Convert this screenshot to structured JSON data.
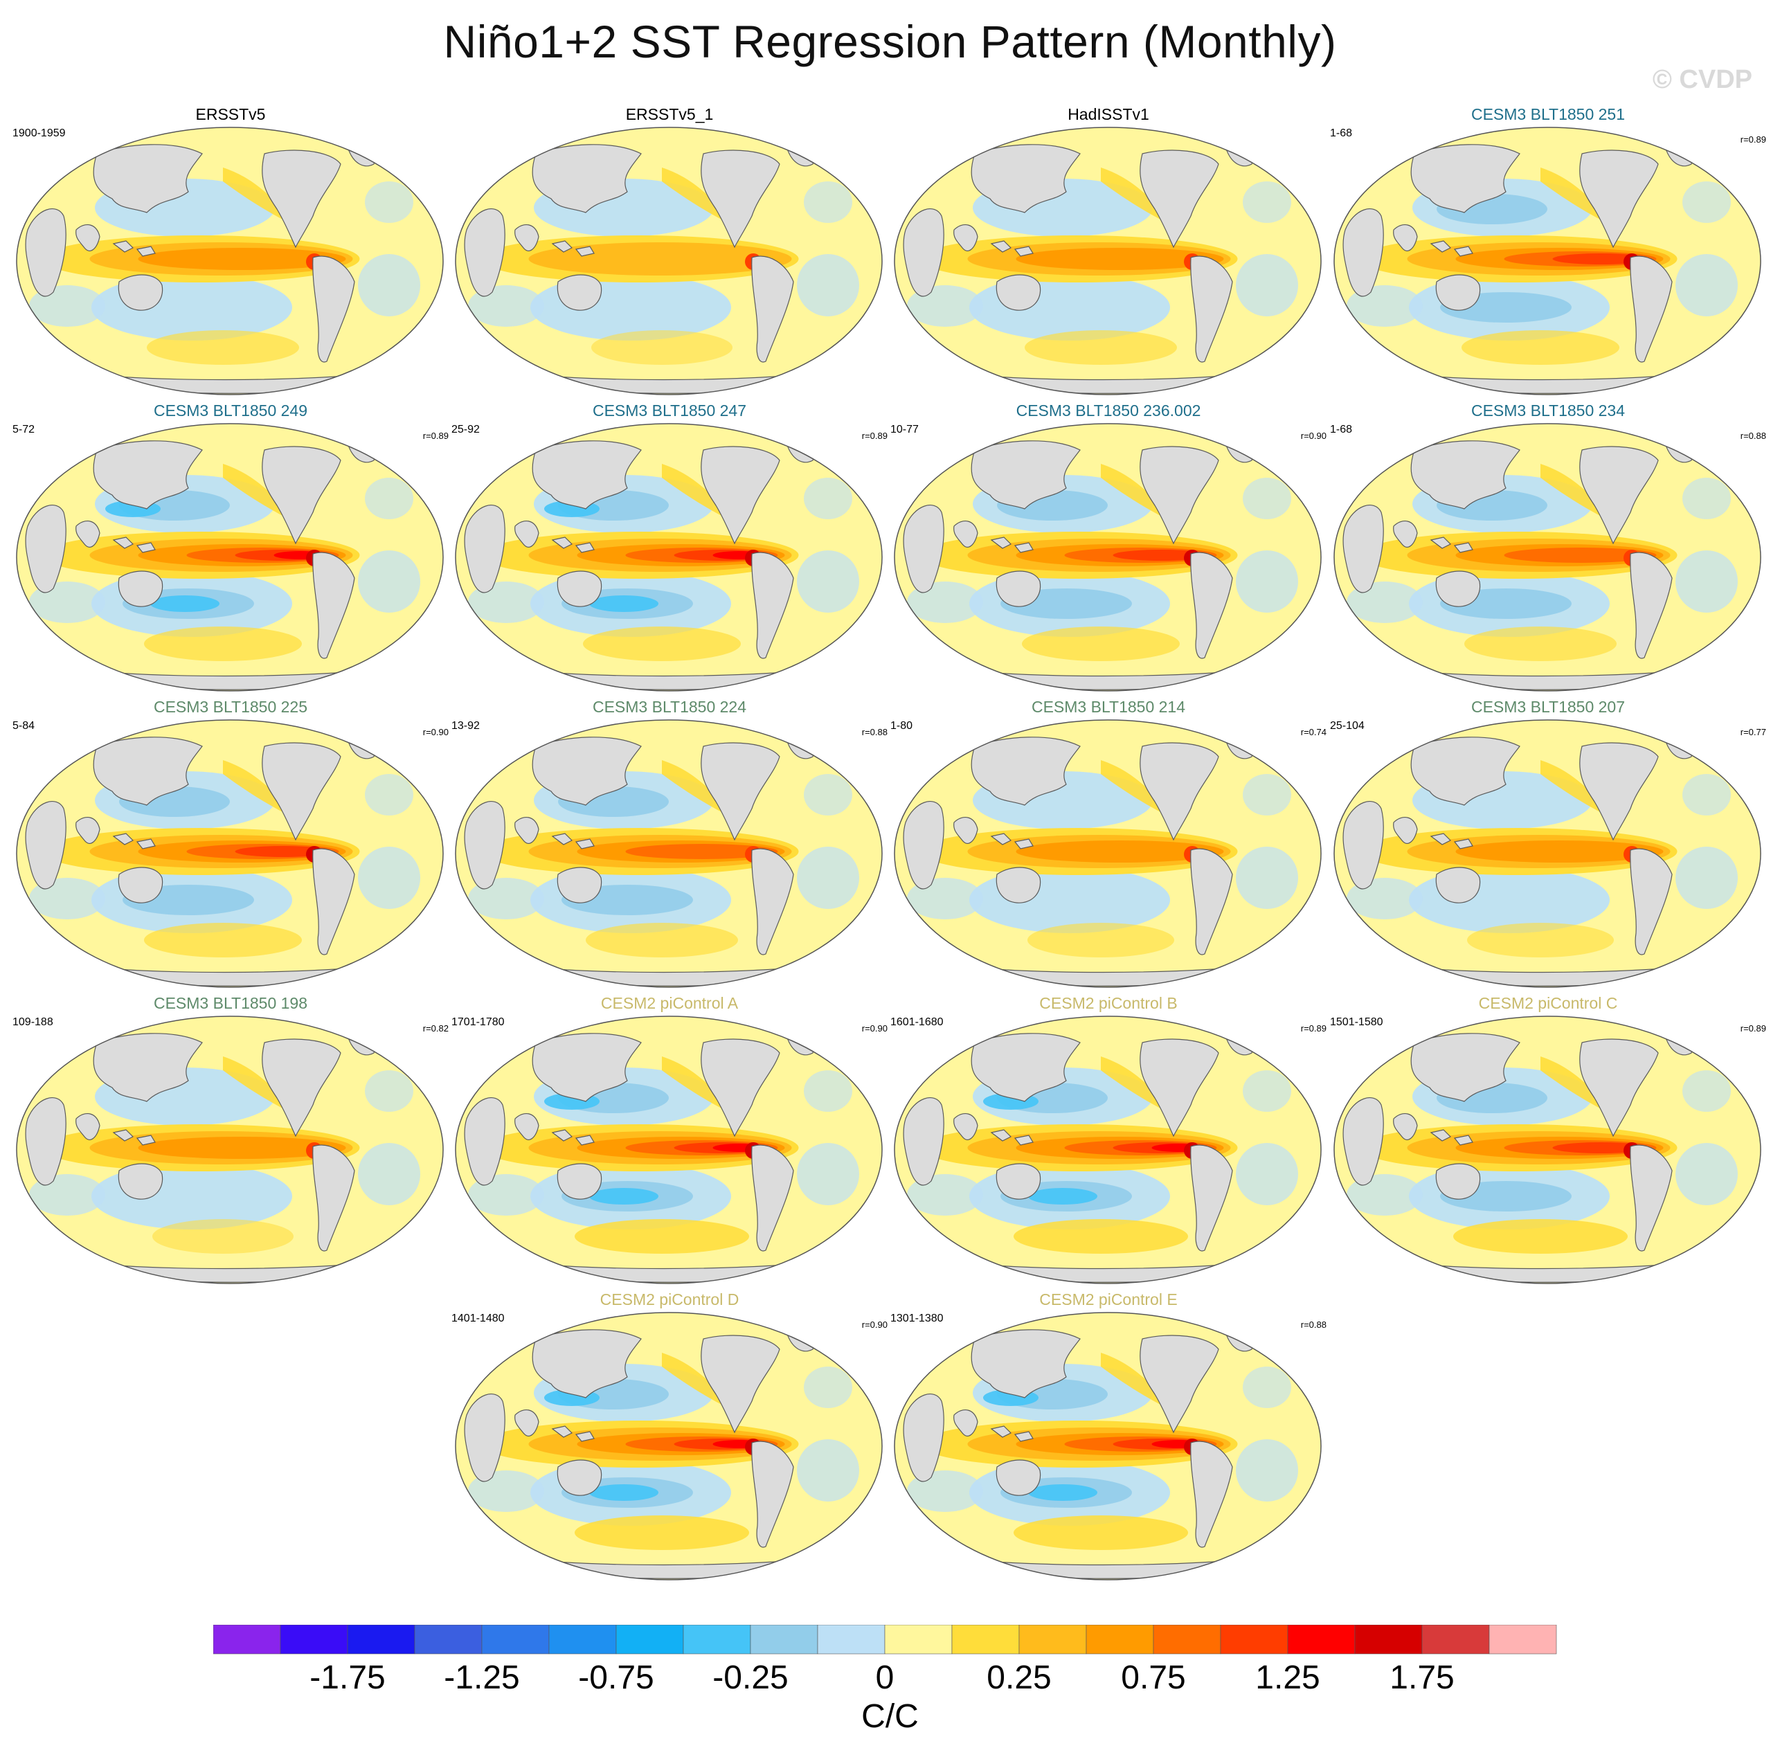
{
  "title": "Niño1+2 SST Regression Pattern (Monthly)",
  "watermark": "© CVDP",
  "panels": [
    {
      "title": "ERSSTv5",
      "period": "1900-1959",
      "r": "",
      "group": "obs",
      "pattern": 0.85,
      "south": 0.5
    },
    {
      "title": "ERSSTv5_1",
      "period": "",
      "r": "",
      "group": "obs",
      "pattern": 0.7,
      "south": 0.3
    },
    {
      "title": "HadISSTv1",
      "period": "",
      "r": "",
      "group": "obs",
      "pattern": 0.8,
      "south": 0.5
    },
    {
      "title": "CESM3 BLT1850 251",
      "period": "1-68",
      "r": "r=0.89",
      "group": "cesm3a",
      "pattern": 1.05,
      "south": 0.6
    },
    {
      "title": "CESM3 BLT1850 249",
      "period": "5-72",
      "r": "r=0.89",
      "group": "cesm3a",
      "pattern": 1.2,
      "south": 0.6
    },
    {
      "title": "CESM3 BLT1850 247",
      "period": "25-92",
      "r": "r=0.89",
      "group": "cesm3a",
      "pattern": 1.15,
      "south": 0.6
    },
    {
      "title": "CESM3 BLT1850 236.002",
      "period": "10-77",
      "r": "r=0.90",
      "group": "cesm3a",
      "pattern": 1.1,
      "south": 0.6
    },
    {
      "title": "CESM3 BLT1850 234",
      "period": "1-68",
      "r": "r=0.88",
      "group": "cesm3a",
      "pattern": 1.0,
      "south": 0.5
    },
    {
      "title": "CESM3 BLT1850 225",
      "period": "5-84",
      "r": "r=0.90",
      "group": "cesm3b",
      "pattern": 1.1,
      "south": 0.6
    },
    {
      "title": "CESM3 BLT1850 224",
      "period": "13-92",
      "r": "r=0.88",
      "group": "cesm3b",
      "pattern": 0.95,
      "south": 0.5
    },
    {
      "title": "CESM3 BLT1850 214",
      "period": "1-80",
      "r": "r=0.74",
      "group": "cesm3b",
      "pattern": 0.75,
      "south": 0.4
    },
    {
      "title": "CESM3 BLT1850 207",
      "period": "25-104",
      "r": "r=0.77",
      "group": "cesm3b",
      "pattern": 0.85,
      "south": 0.4
    },
    {
      "title": "CESM3 BLT1850 198",
      "period": "109-188",
      "r": "r=0.82",
      "group": "cesm3b",
      "pattern": 0.8,
      "south": 0.3
    },
    {
      "title": "CESM2 piControl A",
      "period": "1701-1780",
      "r": "r=0.90",
      "group": "cesm2",
      "pattern": 1.2,
      "south": 0.9
    },
    {
      "title": "CESM2 piControl B",
      "period": "1601-1680",
      "r": "r=0.89",
      "group": "cesm2",
      "pattern": 1.15,
      "south": 0.9
    },
    {
      "title": "CESM2 piControl C",
      "period": "1501-1580",
      "r": "r=0.89",
      "group": "cesm2",
      "pattern": 1.1,
      "south": 0.9
    },
    {
      "title": "CESM2 piControl D",
      "period": "1401-1480",
      "r": "r=0.90",
      "group": "cesm2",
      "pattern": 1.2,
      "south": 0.9
    },
    {
      "title": "CESM2 piControl E",
      "period": "1301-1380",
      "r": "r=0.88",
      "group": "cesm2",
      "pattern": 1.15,
      "south": 0.9
    }
  ],
  "title_colors": {
    "obs": "#000000",
    "cesm3a": "#1f6f8b",
    "cesm3b": "#5e8a6a",
    "cesm2": "#c8b96a"
  },
  "map_colors": {
    "land": "#dcdcdc",
    "coast": "#5a5a5a",
    "outline": "#555555"
  },
  "chart_data": {
    "type": "heatmap",
    "title": "Niño1+2 SST Regression Pattern (Monthly)",
    "units_label": "C/C",
    "colorbar_levels": [
      -2.0,
      -1.75,
      -1.5,
      -1.25,
      -1.0,
      -0.75,
      -0.5,
      -0.25,
      0,
      0.25,
      0.5,
      0.75,
      1.0,
      1.25,
      1.5,
      1.75,
      2.0
    ],
    "colorbar_colors": [
      "#8a24ec",
      "#3a0cf7",
      "#1a1af0",
      "#3b5fe0",
      "#2f78ea",
      "#1f90f0",
      "#12b0f5",
      "#45c4f7",
      "#92cdea",
      "#bde0f6",
      "#fff79d",
      "#ffdd3a",
      "#ffbb1c",
      "#ff9b00",
      "#ff6d00",
      "#ff3d00",
      "#ff0000",
      "#d60000",
      "#d83a3a",
      "#ffb3b3"
    ],
    "tick_labels": [
      "-1.75",
      "-1.25",
      "-0.75",
      "-0.25",
      "0",
      "0.25",
      "0.75",
      "1.25",
      "1.75"
    ],
    "tick_boundaries": [
      1,
      3,
      5,
      7,
      9,
      11,
      13,
      15,
      17
    ]
  }
}
